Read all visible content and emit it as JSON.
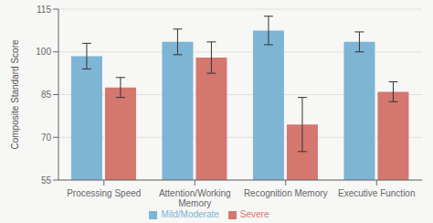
{
  "chart_data": {
    "type": "bar",
    "categories": [
      "Processing Speed",
      "Attention/Working Memory",
      "Recognition Memory",
      "Executive Function"
    ],
    "series": [
      {
        "name": "Mild/Moderate",
        "color": "#7EB4D4",
        "values": [
          98.5,
          103.5,
          107.5,
          103.5
        ],
        "errors": [
          4.5,
          4.5,
          5.0,
          3.5
        ]
      },
      {
        "name": "Severe",
        "color": "#D4776F",
        "values": [
          87.5,
          98.0,
          74.5,
          86.0
        ],
        "errors": [
          3.5,
          5.5,
          9.5,
          3.5
        ]
      }
    ],
    "ylabel": "Composite Standard Score",
    "ylim": [
      55,
      115
    ],
    "yticks": [
      55,
      70,
      85,
      100,
      115
    ],
    "grid": true,
    "legend": "bottom"
  }
}
